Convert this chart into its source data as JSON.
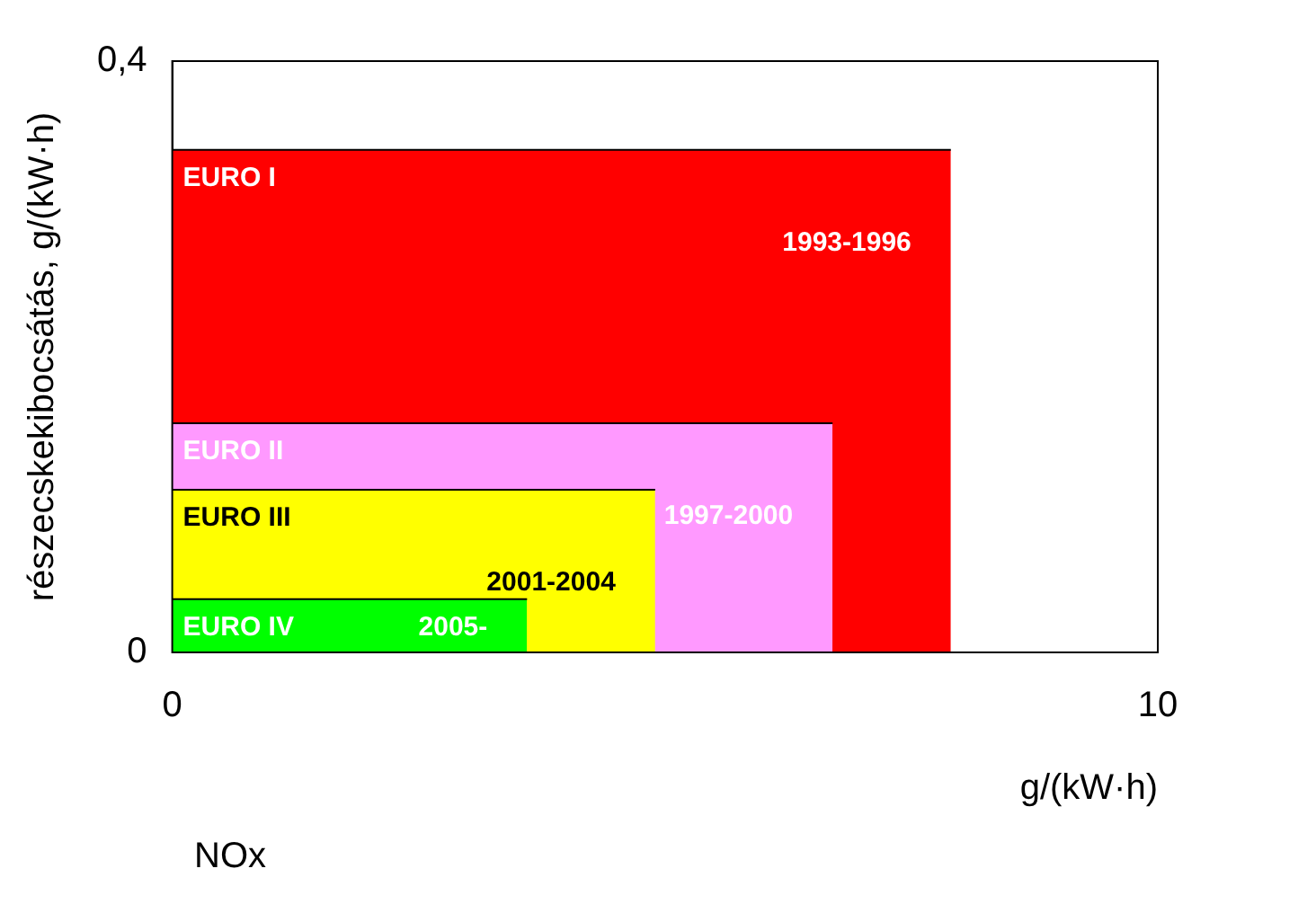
{
  "chart_data": {
    "type": "area",
    "xlabel": "g/(kW·h)",
    "ylabel": "részecskekibocsátás, g/(kW·h)",
    "xlim": [
      0,
      10
    ],
    "xticks": [
      0,
      10
    ],
    "ylim": [
      0,
      0.4
    ],
    "yticks": [
      0,
      {
        "value": 0.4,
        "label": "0,4"
      }
    ],
    "legend": false,
    "series": [
      {
        "name": "EURO I",
        "color": "#ff0000",
        "x": [
          0,
          7.9
        ],
        "values": [
          0.34,
          0.34
        ]
      },
      {
        "name": "EURO II",
        "color": "#ff99ff",
        "x": [
          0,
          6.7
        ],
        "values": [
          0.155,
          0.155
        ]
      },
      {
        "name": "EURO III",
        "color": "#ffff00",
        "x": [
          0,
          4.9
        ],
        "values": [
          0.11,
          0.11
        ]
      },
      {
        "name": "EURO IV",
        "color": "#00ff00",
        "x": [
          0,
          3.6
        ],
        "values": [
          0.036,
          0.036
        ]
      }
    ],
    "annotations": [
      "1993-1996",
      "1997-2000",
      "2001-2004",
      "2005-",
      "NOx"
    ]
  }
}
